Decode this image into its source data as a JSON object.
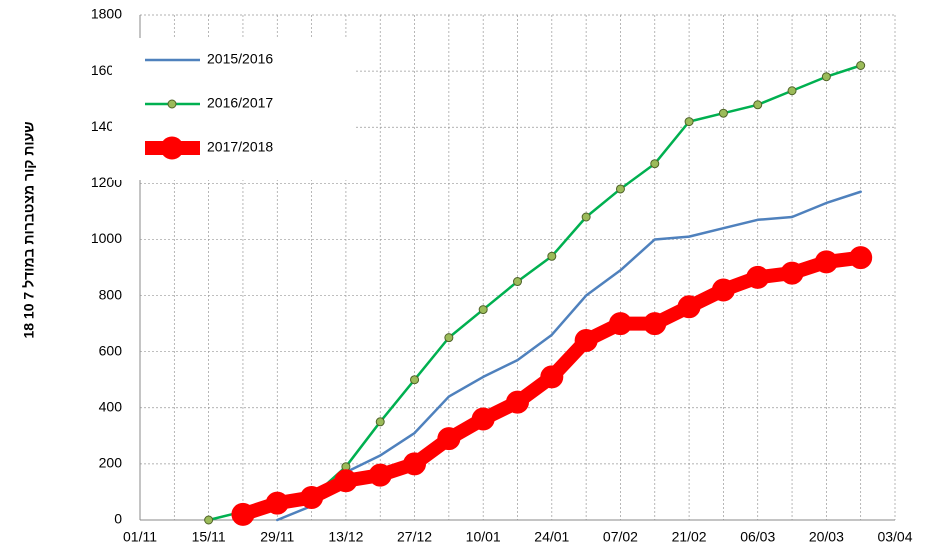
{
  "chart_data": {
    "type": "line",
    "y_label": "שעות קור מצטברות במודל 7 10 18",
    "categories": [
      "01/11",
      null,
      "15/11",
      null,
      "29/11",
      null,
      "13/12",
      null,
      "27/12",
      null,
      "10/01",
      null,
      "24/01",
      null,
      "07/02",
      null,
      "21/02",
      null,
      "06/03",
      null,
      "20/03",
      null,
      "03/04"
    ],
    "series": [
      {
        "name": "2015/2016",
        "color": "#4f81bd",
        "values": [
          null,
          null,
          null,
          null,
          0,
          50,
          170,
          230,
          310,
          440,
          510,
          570,
          660,
          800,
          890,
          1000,
          1010,
          1040,
          1070,
          1080,
          1130,
          1170,
          null
        ]
      },
      {
        "name": "2016/2017",
        "color": "#00b050",
        "values": [
          null,
          null,
          0,
          30,
          60,
          80,
          190,
          350,
          500,
          650,
          750,
          850,
          940,
          1080,
          1180,
          1270,
          1420,
          1450,
          1480,
          1530,
          1580,
          1620,
          null
        ]
      },
      {
        "name": "2017/2018",
        "color": "#ff0000",
        "values": [
          null,
          null,
          null,
          20,
          60,
          80,
          140,
          160,
          200,
          290,
          360,
          420,
          510,
          640,
          700,
          700,
          760,
          820,
          865,
          880,
          920,
          935,
          null
        ]
      }
    ],
    "ylim": [
      0,
      1800
    ],
    "yticks": [
      0,
      200,
      400,
      600,
      800,
      1000,
      1200,
      1400,
      1600,
      1800
    ],
    "grid": true,
    "legend": "upper left"
  }
}
